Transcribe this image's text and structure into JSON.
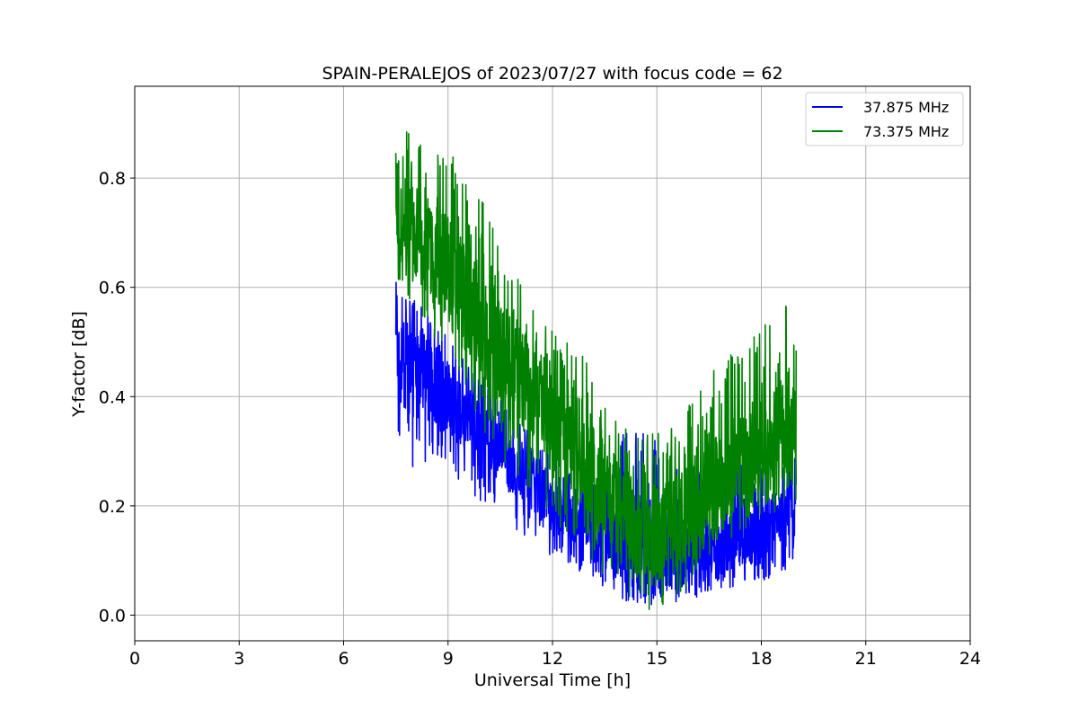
{
  "chart_data": {
    "type": "line",
    "title": "SPAIN-PERALEJOS of 2023/07/27 with focus code = 62",
    "xlabel": "Universal Time [h]",
    "ylabel": "Y-factor [dB]",
    "xlim": [
      0,
      24
    ],
    "ylim": [
      -0.047,
      0.968
    ],
    "xticks": [
      0,
      3,
      6,
      9,
      12,
      15,
      18,
      21,
      24
    ],
    "yticks": [
      0.0,
      0.2,
      0.4,
      0.6,
      0.8
    ],
    "ytick_labels": [
      "0.0",
      "0.2",
      "0.4",
      "0.6",
      "0.8"
    ],
    "grid": true,
    "legend_position": "top-right",
    "series": [
      {
        "name": "37.875 MHz",
        "color": "#0000ff",
        "x": [
          7.5,
          8.0,
          8.5,
          9.0,
          9.5,
          10.0,
          10.5,
          11.0,
          11.5,
          12.0,
          12.5,
          13.0,
          13.5,
          14.0,
          14.5,
          15.0,
          15.5,
          16.0,
          16.5,
          17.0,
          17.5,
          18.0,
          18.5,
          19.0
        ],
        "mean": [
          0.47,
          0.45,
          0.43,
          0.4,
          0.37,
          0.34,
          0.3,
          0.27,
          0.24,
          0.21,
          0.19,
          0.17,
          0.15,
          0.13,
          0.12,
          0.12,
          0.11,
          0.11,
          0.12,
          0.13,
          0.14,
          0.16,
          0.17,
          0.19
        ],
        "min": [
          0.32,
          0.27,
          0.27,
          0.25,
          0.24,
          0.2,
          0.18,
          0.15,
          0.13,
          0.1,
          0.09,
          0.07,
          0.04,
          0.03,
          0.0,
          0.02,
          0.02,
          0.03,
          0.04,
          0.05,
          0.05,
          0.06,
          0.07,
          0.09
        ],
        "max": [
          0.61,
          0.59,
          0.54,
          0.51,
          0.47,
          0.44,
          0.4,
          0.36,
          0.33,
          0.3,
          0.28,
          0.26,
          0.27,
          0.34,
          0.35,
          0.33,
          0.29,
          0.27,
          0.26,
          0.27,
          0.28,
          0.3,
          0.28,
          0.29
        ]
      },
      {
        "name": "73.375 MHz",
        "color": "#008000",
        "x": [
          7.5,
          8.0,
          8.5,
          9.0,
          9.5,
          10.0,
          10.5,
          11.0,
          11.5,
          12.0,
          12.5,
          13.0,
          13.5,
          14.0,
          14.5,
          15.0,
          15.5,
          16.0,
          16.5,
          17.0,
          17.5,
          18.0,
          18.5,
          19.0
        ],
        "mean": [
          0.69,
          0.69,
          0.66,
          0.63,
          0.58,
          0.53,
          0.48,
          0.44,
          0.4,
          0.36,
          0.33,
          0.28,
          0.24,
          0.19,
          0.15,
          0.16,
          0.17,
          0.19,
          0.22,
          0.25,
          0.28,
          0.3,
          0.32,
          0.33
        ],
        "min": [
          0.6,
          0.56,
          0.52,
          0.47,
          0.41,
          0.34,
          0.29,
          0.25,
          0.21,
          0.16,
          0.14,
          0.1,
          0.07,
          0.03,
          0.02,
          0.0,
          0.03,
          0.05,
          0.09,
          0.12,
          0.15,
          0.17,
          0.19,
          0.21
        ],
        "max": [
          0.92,
          0.87,
          0.86,
          0.87,
          0.79,
          0.76,
          0.67,
          0.62,
          0.58,
          0.52,
          0.51,
          0.46,
          0.41,
          0.36,
          0.33,
          0.35,
          0.34,
          0.4,
          0.44,
          0.47,
          0.5,
          0.52,
          0.59,
          0.55
        ]
      }
    ]
  }
}
